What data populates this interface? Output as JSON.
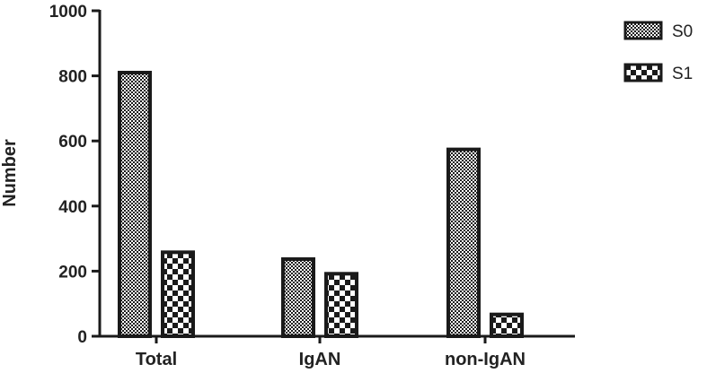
{
  "chart_data": {
    "type": "bar",
    "title": "",
    "xlabel": "",
    "ylabel": "Number",
    "ylim": [
      0,
      1000
    ],
    "yticks": [
      0,
      200,
      400,
      600,
      800,
      1000
    ],
    "categories": [
      "Total",
      "IgAN",
      "non-IgAN"
    ],
    "series": [
      {
        "name": "S0",
        "values": [
          810,
          237,
          574
        ],
        "pattern": "fine-checker"
      },
      {
        "name": "S1",
        "values": [
          258,
          192,
          67
        ],
        "pattern": "coarse-checker"
      }
    ],
    "grid": false,
    "legend_position": "top-right",
    "colors": {
      "ink": "#1a1a1a",
      "background": "#ffffff"
    }
  }
}
